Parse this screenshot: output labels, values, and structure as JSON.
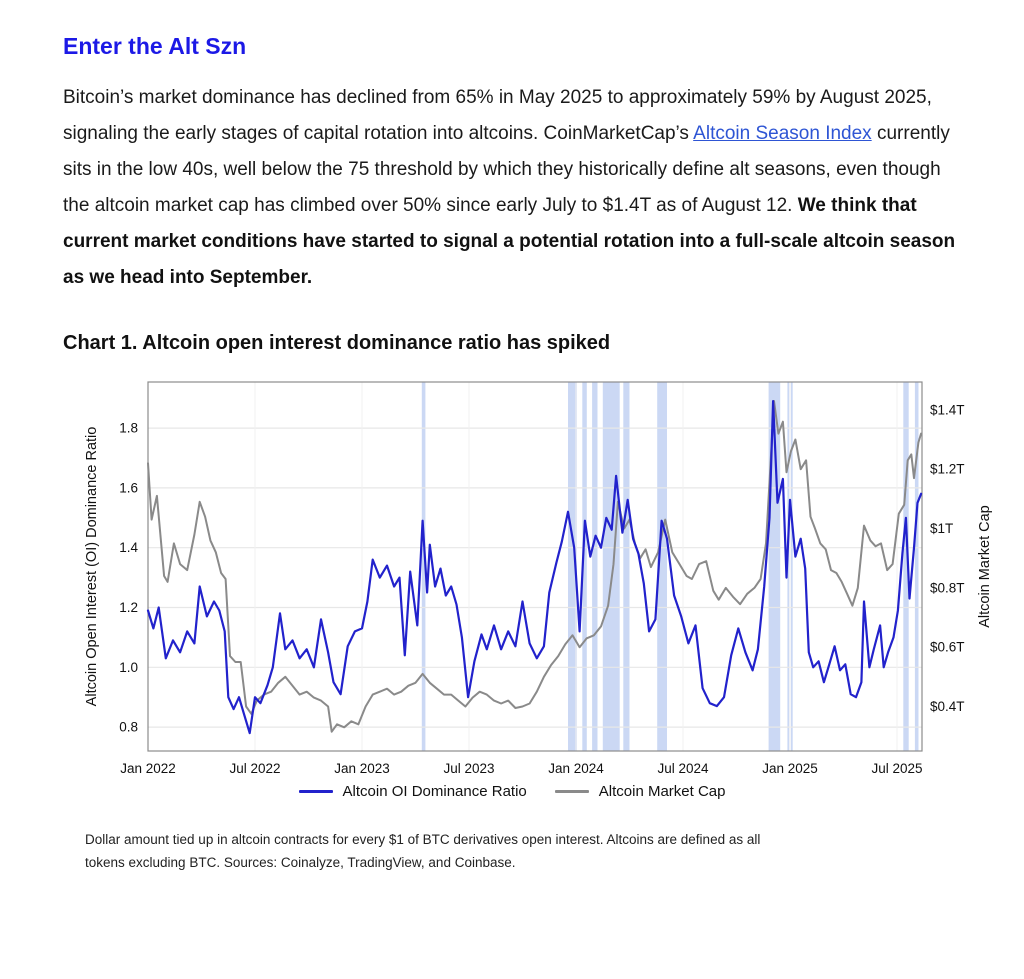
{
  "page": {
    "heading": "Enter the Alt Szn",
    "paragraph": {
      "part1": "Bitcoin’s market dominance has declined from 65% in May 2025 to approximately 59% by August 2025, signaling the early stages of capital rotation into altcoins. CoinMarketCap’s ",
      "link_text": "Altcoin Season Index",
      "part2": " currently sits in the low 40s, well below the 75 threshold by which they historically define alt seasons, even though the altcoin market cap has climbed over 50% since early July to $1.4T as of August 12. ",
      "bold_text": "We think that current market conditions have started to signal a potential rotation into a full-scale altcoin season as we head into September."
    },
    "chart_heading": "Chart 1. Altcoin open interest dominance ratio has spiked",
    "footnote_line1": "Dollar amount tied up in altcoin contracts for every $1 of BTC derivatives open interest. Altcoins are defined as all",
    "footnote_line2": "tokens excluding BTC. Sources: Coinalyze, TradingView, and Coinbase."
  },
  "colors": {
    "heading_blue": "#1c19e6",
    "link_blue": "#2e55d4",
    "oi_ratio_line": "#2222cc",
    "market_cap_line": "#8a8a8a",
    "event_band": "#cbd8f4",
    "grid": "#e7e7e7",
    "plot_border": "#8c8c8c"
  },
  "chart_data": {
    "type": "line",
    "title": "Chart 1. Altcoin open interest dominance ratio has spiked",
    "x_axis": {
      "unit": "months since Jan 2022",
      "range": [
        0,
        43.4
      ],
      "ticks": [
        {
          "t": 0,
          "label": "Jan 2022"
        },
        {
          "t": 6,
          "label": "Jul 2022"
        },
        {
          "t": 12,
          "label": "Jan 2023"
        },
        {
          "t": 18,
          "label": "Jul 2023"
        },
        {
          "t": 24,
          "label": "Jan 2024"
        },
        {
          "t": 30,
          "label": "Jul 2024"
        },
        {
          "t": 36,
          "label": "Jan 2025"
        },
        {
          "t": 42,
          "label": "Jul 2025"
        }
      ]
    },
    "left_axis": {
      "label": "Altcoin Open Interest (OI) Dominance Ratio",
      "range": [
        0.72,
        1.954
      ],
      "ticks": [
        {
          "v": 1.8,
          "label": "1.8"
        },
        {
          "v": 1.6,
          "label": "1.6"
        },
        {
          "v": 1.4,
          "label": "1.4"
        },
        {
          "v": 1.2,
          "label": "1.2"
        },
        {
          "v": 1.0,
          "label": "1.0"
        },
        {
          "v": 0.8,
          "label": "0.8"
        }
      ]
    },
    "right_axis": {
      "label": "Altcoin Market Cap",
      "range": [
        0.25,
        1.494
      ],
      "ticks": [
        {
          "v": 1.4,
          "label": "$1.4T"
        },
        {
          "v": 1.2,
          "label": "$1.2T"
        },
        {
          "v": 1.0,
          "label": "$1T"
        },
        {
          "v": 0.8,
          "label": "$0.8T"
        },
        {
          "v": 0.6,
          "label": "$0.6T"
        },
        {
          "v": 0.4,
          "label": "$0.4T"
        }
      ]
    },
    "legend_position": "bottom",
    "grid": true,
    "series": [
      {
        "name": "Altcoin Market Cap",
        "axis": "right",
        "unit": "trillion USD",
        "color": "#8a8a8a",
        "x": [
          0,
          0.2,
          0.5,
          0.9,
          1.1,
          1.45,
          1.8,
          2.2,
          2.6,
          2.9,
          3.2,
          3.5,
          3.8,
          4.1,
          4.35,
          4.6,
          4.9,
          5.2,
          5.5,
          5.8,
          6.1,
          6.5,
          6.9,
          7.3,
          7.7,
          8.1,
          8.5,
          8.9,
          9.3,
          9.7,
          10.1,
          10.3,
          10.6,
          11.0,
          11.4,
          11.8,
          12.2,
          12.6,
          13.0,
          13.4,
          13.8,
          14.2,
          14.6,
          15.0,
          15.4,
          15.8,
          16.2,
          16.6,
          17.0,
          17.4,
          17.8,
          18.2,
          18.6,
          19.0,
          19.4,
          19.8,
          20.2,
          20.6,
          21.0,
          21.4,
          21.8,
          22.2,
          22.6,
          23.0,
          23.4,
          23.8,
          24.2,
          24.6,
          25.0,
          25.4,
          25.8,
          26.1,
          26.35,
          26.7,
          27.0,
          27.3,
          27.6,
          27.9,
          28.2,
          28.6,
          29.0,
          29.4,
          29.8,
          30.2,
          30.5,
          30.9,
          31.3,
          31.7,
          32.0,
          32.4,
          32.8,
          33.2,
          33.6,
          34.0,
          34.35,
          34.65,
          34.9,
          35.1,
          35.35,
          35.6,
          35.8,
          36.05,
          36.3,
          36.6,
          36.9,
          37.15,
          37.4,
          37.7,
          38.0,
          38.3,
          38.6,
          38.9,
          39.2,
          39.5,
          39.8,
          40.15,
          40.5,
          40.8,
          41.1,
          41.45,
          41.75,
          42.1,
          42.4,
          42.6,
          42.8,
          42.95,
          43.2,
          43.35
        ],
        "y": [
          1.22,
          1.03,
          1.11,
          0.84,
          0.82,
          0.95,
          0.88,
          0.86,
          0.98,
          1.09,
          1.04,
          0.96,
          0.92,
          0.85,
          0.83,
          0.57,
          0.55,
          0.55,
          0.4,
          0.375,
          0.42,
          0.44,
          0.45,
          0.48,
          0.5,
          0.47,
          0.44,
          0.45,
          0.43,
          0.42,
          0.4,
          0.315,
          0.34,
          0.33,
          0.35,
          0.34,
          0.4,
          0.44,
          0.45,
          0.46,
          0.44,
          0.45,
          0.47,
          0.48,
          0.51,
          0.48,
          0.46,
          0.44,
          0.44,
          0.42,
          0.4,
          0.43,
          0.45,
          0.44,
          0.42,
          0.41,
          0.42,
          0.395,
          0.4,
          0.41,
          0.45,
          0.5,
          0.54,
          0.57,
          0.61,
          0.64,
          0.6,
          0.63,
          0.64,
          0.67,
          0.74,
          0.88,
          1.09,
          1.0,
          1.03,
          0.95,
          0.9,
          0.93,
          0.87,
          0.92,
          1.03,
          0.92,
          0.88,
          0.84,
          0.83,
          0.88,
          0.89,
          0.79,
          0.76,
          0.8,
          0.77,
          0.745,
          0.78,
          0.8,
          0.83,
          0.95,
          1.21,
          1.43,
          1.32,
          1.36,
          1.19,
          1.26,
          1.3,
          1.2,
          1.23,
          1.04,
          1.0,
          0.95,
          0.93,
          0.86,
          0.85,
          0.82,
          0.78,
          0.74,
          0.8,
          1.01,
          0.96,
          0.94,
          0.95,
          0.86,
          0.88,
          1.05,
          1.08,
          1.23,
          1.25,
          1.17,
          1.29,
          1.32
        ]
      },
      {
        "name": "Altcoin OI Dominance Ratio",
        "axis": "left",
        "unit": "ratio",
        "color": "#2222cc",
        "x": [
          0,
          0.3,
          0.6,
          1.0,
          1.4,
          1.8,
          2.2,
          2.6,
          2.9,
          3.3,
          3.7,
          4.0,
          4.3,
          4.5,
          4.8,
          5.1,
          5.4,
          5.7,
          6.0,
          6.3,
          6.7,
          7.0,
          7.4,
          7.7,
          8.1,
          8.5,
          8.9,
          9.3,
          9.7,
          10.1,
          10.4,
          10.8,
          11.2,
          11.6,
          12.0,
          12.3,
          12.6,
          13.0,
          13.4,
          13.8,
          14.1,
          14.4,
          14.7,
          15.1,
          15.4,
          15.65,
          15.8,
          16.1,
          16.4,
          16.7,
          17.0,
          17.3,
          17.6,
          17.95,
          18.3,
          18.7,
          19.0,
          19.4,
          19.8,
          20.2,
          20.6,
          21.0,
          21.4,
          21.8,
          22.2,
          22.5,
          22.9,
          23.2,
          23.55,
          23.9,
          24.2,
          24.5,
          24.8,
          25.1,
          25.4,
          25.7,
          26.0,
          26.25,
          26.6,
          26.9,
          27.2,
          27.5,
          27.8,
          28.1,
          28.45,
          28.8,
          29.1,
          29.5,
          29.9,
          30.3,
          30.7,
          31.1,
          31.5,
          31.9,
          32.3,
          32.7,
          33.1,
          33.5,
          33.9,
          34.2,
          34.55,
          34.85,
          35.05,
          35.3,
          35.6,
          35.8,
          36.0,
          36.3,
          36.6,
          36.85,
          37.05,
          37.3,
          37.6,
          37.9,
          38.2,
          38.5,
          38.8,
          39.1,
          39.4,
          39.7,
          40.0,
          40.15,
          40.45,
          40.7,
          41.05,
          41.25,
          41.5,
          41.8,
          42.05,
          42.3,
          42.5,
          42.7,
          42.95,
          43.15,
          43.35
        ],
        "y": [
          1.19,
          1.13,
          1.2,
          1.03,
          1.09,
          1.05,
          1.12,
          1.08,
          1.27,
          1.17,
          1.22,
          1.19,
          1.12,
          0.9,
          0.86,
          0.9,
          0.84,
          0.78,
          0.9,
          0.88,
          0.94,
          1.0,
          1.18,
          1.06,
          1.09,
          1.03,
          1.06,
          1.0,
          1.16,
          1.05,
          0.95,
          0.91,
          1.07,
          1.12,
          1.13,
          1.22,
          1.36,
          1.3,
          1.34,
          1.27,
          1.3,
          1.04,
          1.32,
          1.14,
          1.49,
          1.25,
          1.41,
          1.27,
          1.33,
          1.24,
          1.27,
          1.21,
          1.1,
          0.9,
          1.02,
          1.11,
          1.06,
          1.14,
          1.06,
          1.12,
          1.07,
          1.22,
          1.08,
          1.03,
          1.07,
          1.25,
          1.35,
          1.42,
          1.52,
          1.4,
          1.12,
          1.49,
          1.37,
          1.44,
          1.4,
          1.5,
          1.46,
          1.64,
          1.45,
          1.56,
          1.43,
          1.38,
          1.28,
          1.12,
          1.16,
          1.49,
          1.43,
          1.24,
          1.17,
          1.08,
          1.14,
          0.93,
          0.88,
          0.87,
          0.9,
          1.04,
          1.13,
          1.05,
          0.99,
          1.06,
          1.27,
          1.5,
          1.89,
          1.55,
          1.63,
          1.3,
          1.56,
          1.37,
          1.43,
          1.33,
          1.05,
          1.0,
          1.02,
          0.95,
          1.01,
          1.07,
          0.99,
          1.01,
          0.91,
          0.9,
          0.95,
          1.22,
          1.0,
          1.06,
          1.14,
          1.0,
          1.05,
          1.1,
          1.19,
          1.38,
          1.5,
          1.23,
          1.4,
          1.55,
          1.58
        ]
      }
    ],
    "event_bands": {
      "color": "#cbd8f4",
      "ranges": [
        [
          15.35,
          15.55
        ],
        [
          23.55,
          24.05
        ],
        [
          24.35,
          24.6
        ],
        [
          24.9,
          25.2
        ],
        [
          25.5,
          26.45
        ],
        [
          26.65,
          27.0
        ],
        [
          28.55,
          29.1
        ],
        [
          34.8,
          35.45
        ],
        [
          35.85,
          35.95
        ],
        [
          36.05,
          36.15
        ],
        [
          42.35,
          42.65
        ],
        [
          43.0,
          43.2
        ]
      ]
    }
  }
}
